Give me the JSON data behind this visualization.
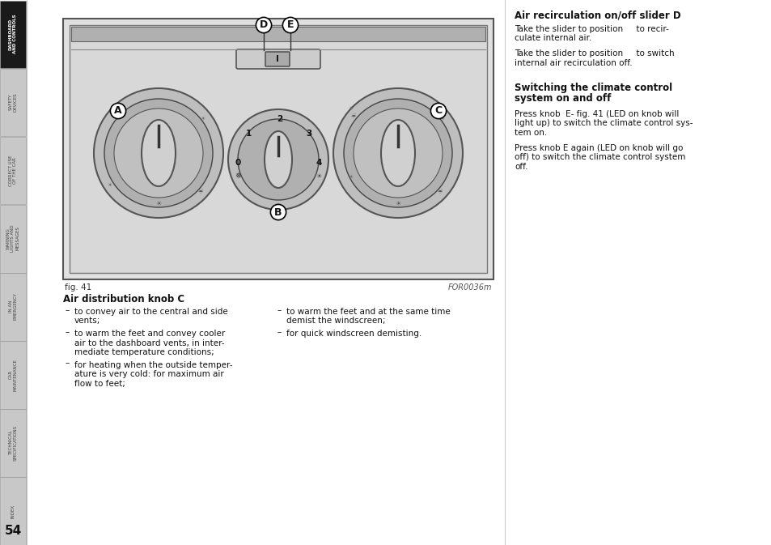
{
  "page_bg": "#ffffff",
  "sidebar_tabs": [
    {
      "label": "DASHBOARD\nAND CONTROLS",
      "active": true
    },
    {
      "label": "SAFETY\nDEVICES",
      "active": false
    },
    {
      "label": "CORRECT USE\nOF THE CAR",
      "active": false
    },
    {
      "label": "WARNING\nLIGHTS AND\nMESSAGES",
      "active": false
    },
    {
      "label": "IN AN\nEMERGENCY",
      "active": false
    },
    {
      "label": "CAR\nMAINTENANCE",
      "active": false
    },
    {
      "label": "TECHNICAL\nSPECIFICATIONS",
      "active": false
    },
    {
      "label": "INDEX",
      "active": false
    }
  ],
  "page_number": "54",
  "fig_label": "fig. 41",
  "fig_code": "FOR0036m",
  "bottom_left_title": "Air distribution knob C",
  "bottom_left_col1": [
    "to convey air to the central and side\nvents;",
    "to warm the feet and convey cooler\nair to the dashboard vents, in inter-\nmediate temperature conditions;",
    "for heating when the outside temper-\nature is very cold: for maximum air\nflow to feet;"
  ],
  "bottom_left_col2": [
    "to warm the feet and at the same time\ndemist the windscreen;",
    "for quick windscreen demisting."
  ],
  "right_title1": "Air recirculation on/off slider D",
  "right_para1": "Take the slider to position     to recir-\nculate internal air.",
  "right_para2": "Take the slider to position     to switch\ninternal air recirculation off.",
  "right_title2": "Switching the climate control\nsystem on and off",
  "right_para3": "Press knob  E- fig. 41 (LED on knob will\nlight up) to switch the climate control sys-\ntem on.",
  "right_para4": "Press knob E again (LED on knob will go\noff) to switch the climate control system\noff."
}
